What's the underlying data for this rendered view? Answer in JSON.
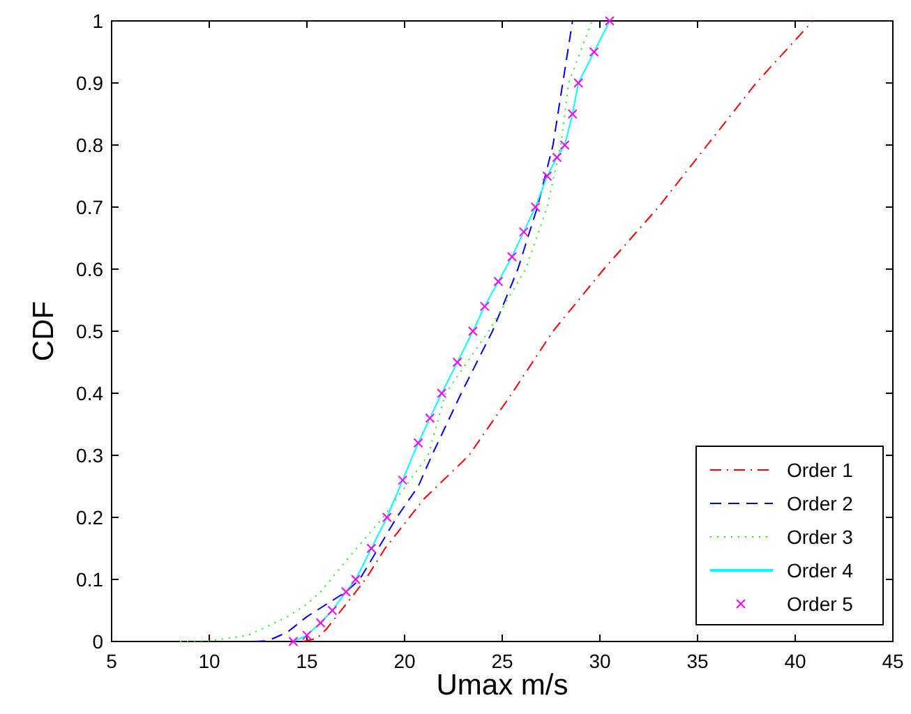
{
  "chart_data": {
    "type": "line",
    "xlabel": "Umax m/s",
    "ylabel": "CDF",
    "xlim": [
      5,
      45
    ],
    "xticks": [
      5,
      10,
      15,
      20,
      25,
      30,
      35,
      40,
      45
    ],
    "ylim": [
      0,
      1
    ],
    "yticks": [
      0,
      0.1,
      0.2,
      0.3,
      0.4,
      0.5,
      0.6,
      0.7,
      0.8,
      0.9,
      1
    ],
    "grid": false,
    "legend": "bottom right",
    "series": [
      {
        "name": "Order 1",
        "color": "#ff0000",
        "line_style": "dashdot",
        "marker": "none",
        "x": [
          14.8,
          15.5,
          16,
          17,
          18,
          19,
          20,
          21,
          23.3,
          25.5,
          27.6,
          30.2,
          33,
          35.5,
          38,
          40.9
        ],
        "values": [
          0,
          0.005,
          0.02,
          0.06,
          0.1,
          0.15,
          0.19,
          0.23,
          0.3,
          0.4,
          0.5,
          0.6,
          0.7,
          0.8,
          0.9,
          1
        ]
      },
      {
        "name": "Order 2",
        "color": "#0000ff",
        "line_style": "dashed",
        "marker": "none",
        "x": [
          12.3,
          13,
          14,
          15,
          16,
          17,
          17.7,
          19.6,
          20.7,
          21.4,
          22.9,
          24.5,
          25.8,
          26.8,
          27.6,
          28.1,
          28.6
        ],
        "values": [
          0,
          0.001,
          0.015,
          0.04,
          0.06,
          0.08,
          0.1,
          0.2,
          0.25,
          0.3,
          0.4,
          0.5,
          0.6,
          0.7,
          0.8,
          0.9,
          1
        ]
      },
      {
        "name": "Order 3",
        "color": "#00ff00",
        "line_style": "dotted",
        "marker": "none",
        "x": [
          8.5,
          10,
          12,
          14,
          15,
          15.7,
          17,
          18.9,
          21.2,
          22.1,
          24.3,
          26.2,
          27.3,
          28,
          28.4,
          29.6
        ],
        "values": [
          0,
          0.001,
          0.01,
          0.04,
          0.06,
          0.08,
          0.13,
          0.2,
          0.3,
          0.4,
          0.5,
          0.6,
          0.7,
          0.8,
          0.9,
          1
        ]
      },
      {
        "name": "Order 4",
        "color": "#00ffff",
        "line_style": "solid",
        "marker": "none",
        "x": [
          14.3,
          15,
          15.7,
          16.3,
          17,
          17.5,
          18.3,
          19.1,
          19.9,
          20.7,
          21.3,
          21.9,
          22.7,
          23.5,
          24.1,
          24.8,
          25.5,
          26.1,
          26.7,
          27.3,
          27.8,
          28.2,
          28.6,
          28.9,
          29.7,
          30.5
        ],
        "values": [
          0,
          0.01,
          0.03,
          0.05,
          0.08,
          0.1,
          0.15,
          0.2,
          0.26,
          0.32,
          0.36,
          0.4,
          0.45,
          0.5,
          0.54,
          0.58,
          0.62,
          0.66,
          0.7,
          0.75,
          0.78,
          0.8,
          0.85,
          0.9,
          0.95,
          1
        ]
      },
      {
        "name": "Order 5",
        "color": "#ff00ff",
        "type": "scatter",
        "marker": "cross",
        "x": [
          14.3,
          15,
          15.7,
          16.3,
          17,
          17.5,
          18.3,
          19.1,
          19.9,
          20.7,
          21.3,
          21.9,
          22.7,
          23.5,
          24.1,
          24.8,
          25.5,
          26.1,
          26.7,
          27.3,
          27.8,
          28.2,
          28.6,
          28.9,
          29.7,
          30.5
        ],
        "values": [
          0,
          0.01,
          0.03,
          0.05,
          0.08,
          0.1,
          0.15,
          0.2,
          0.26,
          0.32,
          0.36,
          0.4,
          0.45,
          0.5,
          0.54,
          0.58,
          0.62,
          0.66,
          0.7,
          0.75,
          0.78,
          0.8,
          0.85,
          0.9,
          0.95,
          1
        ]
      }
    ]
  }
}
